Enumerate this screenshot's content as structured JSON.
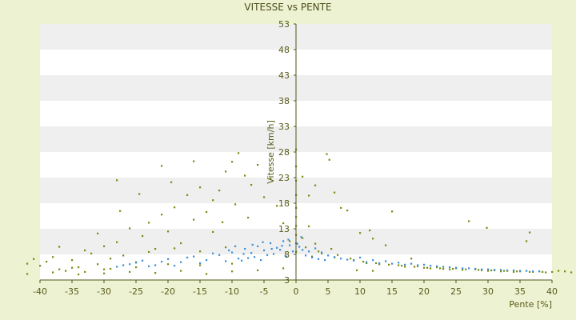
{
  "chart_data": {
    "type": "scatter",
    "title": "VITESSE vs PENTE",
    "xlabel": "Pente [%]",
    "ylabel": "Vitesse [km/h]",
    "xlim": [
      -40,
      40
    ],
    "ylim": [
      3,
      53
    ],
    "x_ticks": [
      -40,
      -35,
      -30,
      -25,
      -20,
      -15,
      -10,
      -5,
      0,
      5,
      10,
      15,
      20,
      25,
      30,
      35,
      40
    ],
    "y_ticks": [
      3,
      8,
      13,
      18,
      23,
      28,
      33,
      38,
      43,
      48,
      53
    ],
    "grid": "horizontal bands",
    "legend": "none",
    "colors": {
      "background": "#edf2d2",
      "plot_band_light": "#ffffff",
      "plot_band_dark": "#efefef",
      "axis": "#4d5a1a",
      "series_olive": "#7a8a10",
      "series_blue": "#3a8fd8"
    },
    "series": [
      {
        "color": "#7a8a10",
        "points": [
          [
            -42,
            6.2
          ],
          [
            -41,
            7.1
          ],
          [
            -40,
            5.8
          ],
          [
            -39,
            6.6
          ],
          [
            -38,
            7.5
          ],
          [
            -37,
            5.1
          ],
          [
            -36,
            4.8
          ],
          [
            -35,
            6.9
          ],
          [
            -34,
            5.5
          ],
          [
            -33,
            4.6
          ],
          [
            -32,
            8.2
          ],
          [
            -31,
            6.1
          ],
          [
            -30,
            9.6
          ],
          [
            -29,
            5.2
          ],
          [
            -28,
            10.4
          ],
          [
            -27,
            7.8
          ],
          [
            -26,
            13.1
          ],
          [
            -25,
            6.5
          ],
          [
            -24,
            11.6
          ],
          [
            -23,
            14.2
          ],
          [
            -22,
            9.1
          ],
          [
            -21,
            15.8
          ],
          [
            -20,
            12.5
          ],
          [
            -19,
            17.2
          ],
          [
            -18,
            10.2
          ],
          [
            -17,
            19.6
          ],
          [
            -16,
            14.8
          ],
          [
            -15,
            21.1
          ],
          [
            -14,
            16.3
          ],
          [
            -13,
            12.4
          ],
          [
            -12,
            20.5
          ],
          [
            -11,
            24.2
          ],
          [
            -10,
            26.1
          ],
          [
            -9,
            27.8
          ],
          [
            -8,
            23.4
          ],
          [
            -7,
            21.6
          ],
          [
            -6,
            25.5
          ],
          [
            -5,
            19.2
          ],
          [
            -4,
            22.8
          ],
          [
            -3,
            17.5
          ],
          [
            -2,
            14.1
          ],
          [
            -1,
            10.6
          ],
          [
            -42,
            4.2
          ],
          [
            -38,
            4.5
          ],
          [
            -34,
            4.1
          ],
          [
            -30,
            4.3
          ],
          [
            -26,
            4.6
          ],
          [
            -22,
            4.4
          ],
          [
            -18,
            4.8
          ],
          [
            -14,
            4.2
          ],
          [
            -10,
            4.7
          ],
          [
            -6,
            4.9
          ],
          [
            -2,
            5.3
          ],
          [
            -28,
            22.5
          ],
          [
            -21,
            25.3
          ],
          [
            -16,
            26.2
          ],
          [
            -27.5,
            16.5
          ],
          [
            -24.5,
            19.8
          ],
          [
            -19.5,
            22.1
          ],
          [
            -13,
            18.6
          ],
          [
            -11.5,
            14.3
          ],
          [
            -9.5,
            17.8
          ],
          [
            -7.5,
            15.2
          ],
          [
            -23,
            8.5
          ],
          [
            -19,
            9.2
          ],
          [
            -15,
            8.6
          ],
          [
            -11,
            9.4
          ],
          [
            -25,
            5.5
          ],
          [
            -20,
            6.1
          ],
          [
            -15,
            5.9
          ],
          [
            -10,
            6.2
          ],
          [
            -30,
            5.1
          ],
          [
            -35,
            5.4
          ],
          [
            -33,
            8.8
          ],
          [
            -31,
            12.1
          ],
          [
            -37,
            9.5
          ],
          [
            -29,
            7.2
          ],
          [
            0,
            28.5
          ],
          [
            0,
            25.2
          ],
          [
            0,
            22.4
          ],
          [
            0,
            19.6
          ],
          [
            0,
            17.1
          ],
          [
            0,
            15.3
          ],
          [
            0,
            13.6
          ],
          [
            0,
            11.8
          ],
          [
            0,
            10.2
          ],
          [
            0,
            8.5
          ],
          [
            1,
            11.2
          ],
          [
            1.5,
            9.4
          ],
          [
            2,
            13.5
          ],
          [
            2.5,
            7.6
          ],
          [
            3,
            10.1
          ],
          [
            4,
            8.2
          ],
          [
            4.8,
            27.6
          ],
          [
            5.2,
            26.5
          ],
          [
            5.5,
            9.1
          ],
          [
            6,
            7.4
          ],
          [
            7,
            17.1
          ],
          [
            8,
            16.6
          ],
          [
            9,
            6.9
          ],
          [
            10,
            12.2
          ],
          [
            11,
            6.3
          ],
          [
            12,
            11.1
          ],
          [
            13,
            6.1
          ],
          [
            14,
            9.8
          ],
          [
            15,
            16.4
          ],
          [
            16,
            5.9
          ],
          [
            17,
            5.6
          ],
          [
            18,
            7.2
          ],
          [
            19,
            5.7
          ],
          [
            20,
            5.4
          ],
          [
            21,
            5.3
          ],
          [
            22,
            5.5
          ],
          [
            23,
            5.2
          ],
          [
            24,
            5.1
          ],
          [
            25,
            5.3
          ],
          [
            26,
            5.0
          ],
          [
            27,
            14.5
          ],
          [
            28,
            5.1
          ],
          [
            29,
            4.9
          ],
          [
            30,
            4.8
          ],
          [
            31,
            4.9
          ],
          [
            32,
            4.7
          ],
          [
            33,
            4.8
          ],
          [
            34,
            4.6
          ],
          [
            35,
            4.7
          ],
          [
            36,
            10.6
          ],
          [
            36.5,
            12.3
          ],
          [
            37,
            4.6
          ],
          [
            38,
            4.7
          ],
          [
            39,
            4.5
          ],
          [
            40,
            4.6
          ],
          [
            41,
            4.8
          ],
          [
            42,
            4.7
          ],
          [
            43,
            4.5
          ],
          [
            3.5,
            8.6
          ],
          [
            6.5,
            7.9
          ],
          [
            8.5,
            7.2
          ],
          [
            10.5,
            6.6
          ],
          [
            12.5,
            6.3
          ],
          [
            14.5,
            6.0
          ],
          [
            16.5,
            5.8
          ],
          [
            18.5,
            5.6
          ],
          [
            20.5,
            5.4
          ],
          [
            22.5,
            5.3
          ],
          [
            24.5,
            5.2
          ],
          [
            26.5,
            5.1
          ],
          [
            28.5,
            5.0
          ],
          [
            30.5,
            4.9
          ],
          [
            32.5,
            4.8
          ],
          [
            34.5,
            4.7
          ],
          [
            36.5,
            4.6
          ],
          [
            38.5,
            4.6
          ],
          [
            2,
            19.5
          ],
          [
            3,
            21.5
          ],
          [
            1,
            23.2
          ],
          [
            9.5,
            4.9
          ],
          [
            12,
            4.8
          ],
          [
            29.8,
            13.2
          ],
          [
            6,
            20.1
          ],
          [
            11.5,
            12.7
          ]
        ]
      },
      {
        "color": "#3a8fd8",
        "points": [
          [
            -28,
            5.6
          ],
          [
            -26,
            6.1
          ],
          [
            -24,
            6.8
          ],
          [
            -22,
            5.9
          ],
          [
            -20,
            7.1
          ],
          [
            -18,
            6.5
          ],
          [
            -16,
            7.6
          ],
          [
            -14,
            6.9
          ],
          [
            -12,
            7.9
          ],
          [
            -10,
            8.4
          ],
          [
            -9,
            7.2
          ],
          [
            -8,
            9.1
          ],
          [
            -7,
            8.3
          ],
          [
            -6,
            9.6
          ],
          [
            -5,
            8.8
          ],
          [
            -4,
            10.2
          ],
          [
            -3,
            9.3
          ],
          [
            -2,
            10.6
          ],
          [
            -1,
            9.8
          ],
          [
            -0.5,
            8.6
          ],
          [
            -11,
            6.7
          ],
          [
            -13,
            8.2
          ],
          [
            -15,
            6.3
          ],
          [
            -17,
            7.4
          ],
          [
            -19,
            5.8
          ],
          [
            -21,
            6.6
          ],
          [
            -23,
            5.7
          ],
          [
            -25,
            6.4
          ],
          [
            -27,
            5.9
          ],
          [
            -6.5,
            7.5
          ],
          [
            -4.5,
            7.9
          ],
          [
            -3.5,
            8.1
          ],
          [
            -2.5,
            8.9
          ],
          [
            -1.5,
            7.6
          ],
          [
            -8.5,
            6.8
          ],
          [
            -7.5,
            7.3
          ],
          [
            -5.5,
            6.9
          ],
          [
            0.5,
            9.5
          ],
          [
            1,
            8.9
          ],
          [
            1.5,
            7.8
          ],
          [
            2,
            8.6
          ],
          [
            2.5,
            7.4
          ],
          [
            3,
            9.2
          ],
          [
            3.5,
            7.1
          ],
          [
            4,
            8.4
          ],
          [
            4.5,
            6.9
          ],
          [
            5,
            7.8
          ],
          [
            6,
            7.5
          ],
          [
            7,
            7.2
          ],
          [
            8,
            7.0
          ],
          [
            9,
            6.8
          ],
          [
            10,
            7.4
          ],
          [
            11,
            6.5
          ],
          [
            12,
            6.9
          ],
          [
            13,
            6.3
          ],
          [
            14,
            6.7
          ],
          [
            15,
            6.2
          ],
          [
            16,
            6.4
          ],
          [
            17,
            6.0
          ],
          [
            18,
            6.2
          ],
          [
            19,
            5.9
          ],
          [
            20,
            6.0
          ],
          [
            21,
            5.8
          ],
          [
            22,
            5.7
          ],
          [
            23,
            5.6
          ],
          [
            24,
            5.5
          ],
          [
            25,
            5.4
          ],
          [
            26,
            5.3
          ],
          [
            27,
            5.3
          ],
          [
            28,
            5.2
          ],
          [
            29,
            5.1
          ],
          [
            30,
            5.1
          ],
          [
            31,
            5.0
          ],
          [
            32,
            5.0
          ],
          [
            33,
            4.9
          ],
          [
            34,
            4.9
          ],
          [
            35,
            4.8
          ],
          [
            36,
            4.8
          ],
          [
            37,
            4.7
          ],
          [
            38,
            4.7
          ],
          [
            -10.5,
            8.8
          ],
          [
            -9.5,
            9.6
          ],
          [
            -8.2,
            8.1
          ],
          [
            -6.8,
            9.9
          ],
          [
            -5.2,
            10.4
          ],
          [
            -3.8,
            9.1
          ],
          [
            -2.2,
            9.7
          ],
          [
            -1.2,
            10.9
          ],
          [
            0.2,
            10.1
          ],
          [
            0.8,
            11.4
          ]
        ]
      }
    ]
  }
}
